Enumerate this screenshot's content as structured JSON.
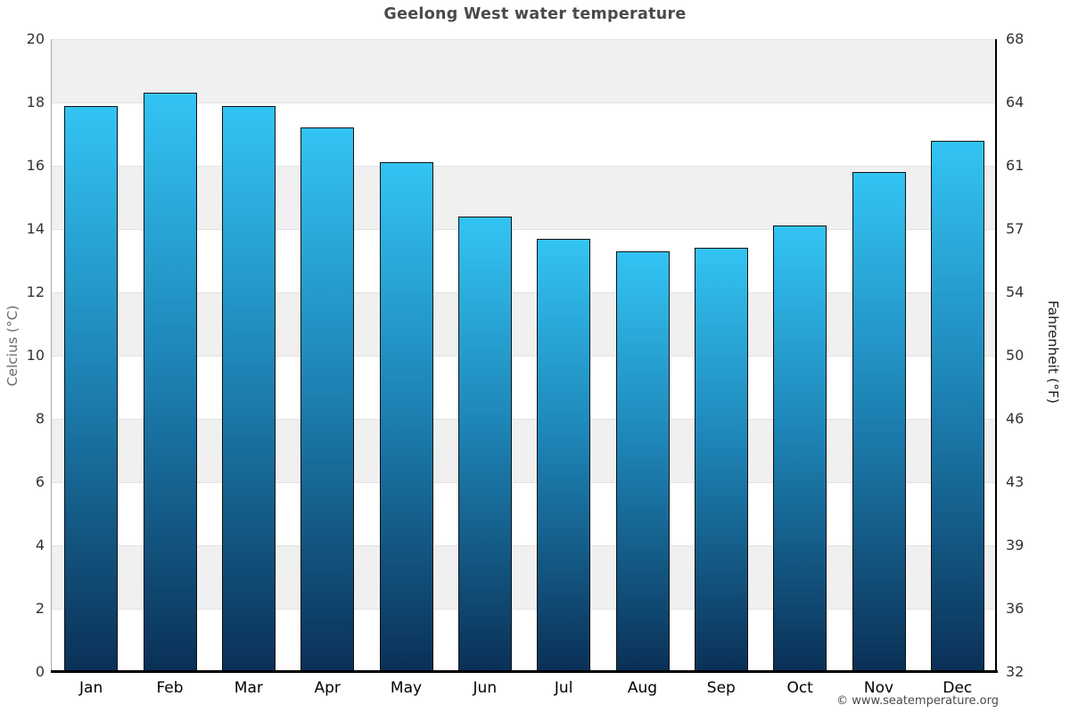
{
  "page": {
    "credit": "© www.seatemperature.org"
  },
  "chart_data": {
    "type": "bar",
    "title": "Geelong West water temperature",
    "categories": [
      "Jan",
      "Feb",
      "Mar",
      "Apr",
      "May",
      "Jun",
      "Jul",
      "Aug",
      "Sep",
      "Oct",
      "Nov",
      "Dec"
    ],
    "values": [
      17.9,
      18.3,
      17.9,
      17.2,
      16.1,
      14.4,
      13.7,
      13.3,
      13.4,
      14.1,
      15.8,
      16.8
    ],
    "value_unit": "°C",
    "ylabel_left": "Celcius (°C)",
    "ylabel_right": "Fahrenheit (°F)",
    "ylim_left_celsius": [
      0,
      20
    ],
    "ylim_right_fahrenheit": [
      32,
      68
    ],
    "left_tick_labels": [
      "20",
      "18",
      "16",
      "14",
      "12",
      "10",
      "8",
      "6",
      "4",
      "2",
      "0"
    ],
    "right_tick_labels": [
      "68",
      "64",
      "61",
      "57",
      "54",
      "50",
      "46",
      "43",
      "39",
      "36",
      "32"
    ],
    "legend": "none",
    "grid": "alternating horizontal bands every 2°C",
    "colors": {
      "bar_gradient_top": "#33c4f3",
      "bar_gradient_mid": "#1e86b8",
      "bar_gradient_bottom": "#0a3056",
      "bar_border": "#111111",
      "band_shaded": "#f0f0f0",
      "band_plain": "#ffffff",
      "gridline": "#e2e2e2",
      "axis_left_line": "#a8a8a8",
      "axis_right_line": "#000000",
      "axis_bottom_line": "#000000",
      "title_text": "#4a4a4a",
      "tick_text": "#333333",
      "month_text": "#000000",
      "ylabel_left_text": "#6b6b6b",
      "ylabel_right_text": "#1a1a1a",
      "credit_text": "#4a4a4a"
    }
  }
}
